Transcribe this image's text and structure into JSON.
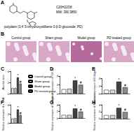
{
  "panel_A": {
    "label": "A",
    "formula": "C20H22O8",
    "mw": "MW: 390.3850",
    "caption": "polydatin (3,4',5-trihydroxystilbene-3-β-D-glucoside; PD)"
  },
  "panel_B": {
    "label": "B",
    "groups": [
      "Control group",
      "Sham group",
      "Model group",
      "PD treated group"
    ]
  },
  "chart_data": [
    {
      "type": "bar",
      "title": "C",
      "ylabel": "Alveolar area",
      "categories": [
        null
      ],
      "ylim": [
        0,
        4
      ],
      "yticks": [
        0,
        2,
        4
      ],
      "tick_labels": "y",
      "legend": "right",
      "annotations": {
        "Model group": "*",
        "PD treated group": "#"
      },
      "series": [
        {
          "name": "Control group",
          "color": "#ffffff",
          "values": [
            1.0
          ]
        },
        {
          "name": "Sham group",
          "color": "#d9d9d9",
          "values": [
            1.0
          ]
        },
        {
          "name": "Model group",
          "color": "#404040",
          "values": [
            2.9
          ]
        },
        {
          "name": "PD treated group",
          "color": "#8c8c8c",
          "values": [
            1.8
          ]
        }
      ]
    },
    {
      "type": "bar",
      "title": "D",
      "ylabel": "Relative expression of TGF-β1",
      "categories": [
        null
      ],
      "ylim": [
        0,
        4
      ],
      "yticks": [
        0,
        2,
        4
      ],
      "tick_labels": "y",
      "annotations": {
        "Model group": "*",
        "PD treated group": "#"
      },
      "series": [
        {
          "name": "Control group",
          "color": "#ffffff",
          "values": [
            1.0
          ]
        },
        {
          "name": "Sham group",
          "color": "#d9d9d9",
          "values": [
            1.1
          ]
        },
        {
          "name": "Model group",
          "color": "#404040",
          "values": [
            3.0
          ]
        },
        {
          "name": "PD treated group",
          "color": "#8c8c8c",
          "values": [
            2.0
          ]
        }
      ]
    },
    {
      "type": "bar",
      "title": "E",
      "ylabel": "Relative expression of Collagen I",
      "categories": [
        null
      ],
      "ylim": [
        0,
        4
      ],
      "yticks": [
        0,
        2,
        4
      ],
      "tick_labels": "y",
      "annotations": {
        "Model group": "*",
        "PD treated group": "#"
      },
      "series": [
        {
          "name": "Control group",
          "color": "#ffffff",
          "values": [
            1.0
          ]
        },
        {
          "name": "Sham group",
          "color": "#d9d9d9",
          "values": [
            1.0
          ]
        },
        {
          "name": "Model group",
          "color": "#404040",
          "values": [
            3.2
          ]
        },
        {
          "name": "PD treated group",
          "color": "#8c8c8c",
          "values": [
            1.7
          ]
        }
      ]
    },
    {
      "type": "bar",
      "title": "F",
      "ylabel": "Relative expression of α-SMA",
      "categories": [
        null
      ],
      "ylim": [
        0,
        4
      ],
      "yticks": [
        0,
        2,
        4
      ],
      "tick_labels": "y",
      "annotations": {
        "Model group": "*",
        "PD treated group": "#"
      },
      "series": [
        {
          "name": "Control group",
          "color": "#ffffff",
          "values": [
            1.0
          ]
        },
        {
          "name": "Sham group",
          "color": "#d9d9d9",
          "values": [
            1.1
          ]
        },
        {
          "name": "Model group",
          "color": "#404040",
          "values": [
            3.0
          ]
        },
        {
          "name": "PD treated group",
          "color": "#8c8c8c",
          "values": [
            1.8
          ]
        }
      ]
    },
    {
      "type": "bar",
      "title": "G",
      "ylabel": "Relative expression of Collagen III",
      "categories": [
        null
      ],
      "ylim": [
        0,
        4
      ],
      "yticks": [
        0,
        2,
        4
      ],
      "tick_labels": "y",
      "annotations": {
        "Model group": "*",
        "PD treated group": "#"
      },
      "series": [
        {
          "name": "Control group",
          "color": "#ffffff",
          "values": [
            1.0
          ]
        },
        {
          "name": "Sham group",
          "color": "#d9d9d9",
          "values": [
            1.0
          ]
        },
        {
          "name": "Model group",
          "color": "#404040",
          "values": [
            2.9
          ]
        },
        {
          "name": "PD treated group",
          "color": "#8c8c8c",
          "values": [
            2.0
          ]
        }
      ]
    },
    {
      "type": "bar",
      "title": "H",
      "ylabel": "Relative expression of Fibronectin",
      "categories": [
        null
      ],
      "ylim": [
        0,
        4
      ],
      "yticks": [
        0,
        2,
        4
      ],
      "tick_labels": "y",
      "annotations": {
        "Model group": "*",
        "PD treated group": "#"
      },
      "series": [
        {
          "name": "Control group",
          "color": "#ffffff",
          "values": [
            1.0
          ]
        },
        {
          "name": "Sham group",
          "color": "#d9d9d9",
          "values": [
            1.0
          ]
        },
        {
          "name": "Model group",
          "color": "#404040",
          "values": [
            3.1
          ]
        },
        {
          "name": "PD treated group",
          "color": "#8c8c8c",
          "values": [
            1.9
          ]
        }
      ]
    }
  ]
}
